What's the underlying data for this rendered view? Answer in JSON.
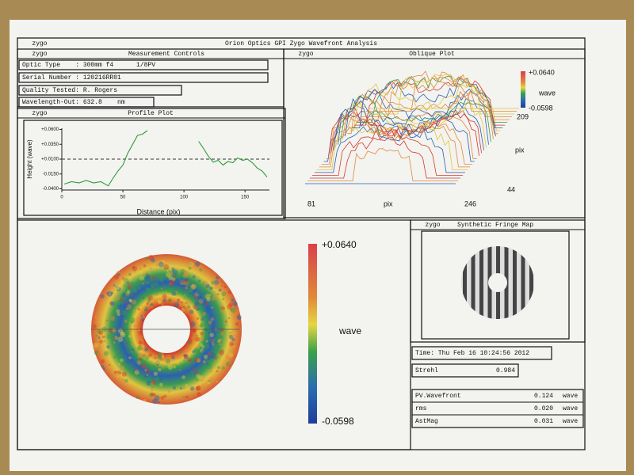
{
  "header": {
    "logo": "zygo",
    "title": "Orion Optics GPI Zygo Wavefront Analysis"
  },
  "measurement_controls": {
    "title": "Measurement Controls",
    "rows": [
      "Optic Type    : 300mm f4      1/8PV",
      "Serial Number : 120216RR01",
      "Quality Tested: R. Rogers",
      "Wavelength-Out: 632.8    nm"
    ]
  },
  "oblique_plot": {
    "title": "Oblique Plot",
    "scale_max": "+0.0640",
    "scale_unit": "wave",
    "scale_min": "-0.0598",
    "y_axis_max": "209",
    "y_axis_label": "pix",
    "y_axis_min": "44",
    "x_axis_min": "81",
    "x_axis_label": "pix",
    "x_axis_max": "246"
  },
  "profile_plot": {
    "title": "Profile Plot",
    "y_label": "Height (wave)",
    "x_label": "Distance (pix)",
    "xlim": [
      0,
      170
    ],
    "ylim": [
      -0.042,
      0.062
    ],
    "xticks": [
      0,
      50,
      100,
      150
    ],
    "yticks": [
      {
        "value": 0.06,
        "label": "+0.0600"
      },
      {
        "value": 0.035,
        "label": "+0.0350"
      },
      {
        "value": 0.01,
        "label": "+0.0100"
      },
      {
        "value": -0.015,
        "label": "-0.0150"
      },
      {
        "value": -0.04,
        "label": "-0.0400"
      }
    ],
    "mean_line": 0.01,
    "x": [
      2,
      8,
      14,
      20,
      26,
      32,
      38,
      42,
      46,
      50,
      54,
      58,
      62,
      66,
      70,
      108,
      112,
      116,
      120,
      124,
      128,
      132,
      136,
      140,
      144,
      148,
      152,
      156,
      160,
      164,
      168
    ],
    "y": [
      -0.032,
      -0.028,
      -0.03,
      -0.026,
      -0.03,
      -0.028,
      -0.035,
      -0.022,
      -0.01,
      0.0,
      0.02,
      0.035,
      0.05,
      0.052,
      0.058,
      null,
      0.04,
      0.028,
      0.015,
      0.005,
      0.008,
      0.0,
      0.006,
      0.004,
      0.012,
      0.008,
      0.01,
      0.004,
      -0.005,
      -0.01,
      -0.02
    ]
  },
  "surface_map": {
    "scale_max": "+0.0640",
    "scale_unit": "wave",
    "scale_min": "-0.0598"
  },
  "fringe_map": {
    "title": "Synthetic Fringe Map"
  },
  "results": {
    "time": "Time: Thu Feb 16 10:24:56 2012",
    "strehl_label": "Strehl",
    "strehl_value": "0.984",
    "rows": [
      {
        "label": "PV.Wavefront",
        "value": "0.124",
        "unit": "wave"
      },
      {
        "label": "rms",
        "value": "0.020",
        "unit": "wave"
      },
      {
        "label": "AstMag",
        "value": "0.031",
        "unit": "wave"
      }
    ]
  }
}
